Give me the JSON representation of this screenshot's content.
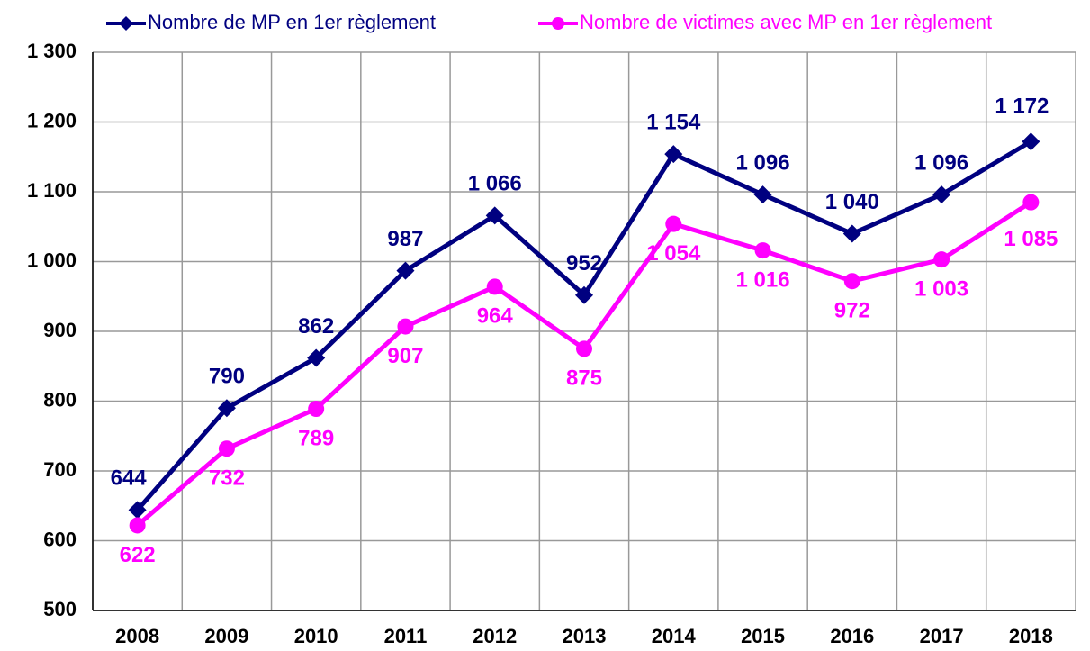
{
  "chart_data": {
    "type": "line",
    "categories": [
      "2008",
      "2009",
      "2010",
      "2011",
      "2012",
      "2013",
      "2014",
      "2015",
      "2016",
      "2017",
      "2018"
    ],
    "series": [
      {
        "name": "Nombre de MP en 1er règlement",
        "color": "#000080",
        "marker": "diamond",
        "values": [
          644,
          790,
          862,
          987,
          1066,
          952,
          1154,
          1096,
          1040,
          1096,
          1172
        ],
        "value_labels": [
          "644",
          "790",
          "862",
          "987",
          "1 066",
          "952",
          "1 154",
          "1 096",
          "1 040",
          "1 096",
          "1 172"
        ]
      },
      {
        "name": "Nombre de victimes avec MP en 1er règlement",
        "color": "#ff00ff",
        "marker": "circle",
        "values": [
          622,
          732,
          789,
          907,
          964,
          875,
          1054,
          1016,
          972,
          1003,
          1085
        ],
        "value_labels": [
          "622",
          "732",
          "789",
          "907",
          "964",
          "875",
          "1 054",
          "1 016",
          "972",
          "1 003",
          "1 085"
        ]
      }
    ],
    "ylim": [
      500,
      1300
    ],
    "yticks": [
      500,
      600,
      700,
      800,
      900,
      {
        "value": 1000,
        "label": "1 000"
      },
      {
        "value": 1100,
        "label": "1 100"
      },
      {
        "value": 1200,
        "label": "1 200"
      },
      {
        "value": 1300,
        "label": "1 300"
      }
    ],
    "grid": true,
    "legend": "top"
  }
}
